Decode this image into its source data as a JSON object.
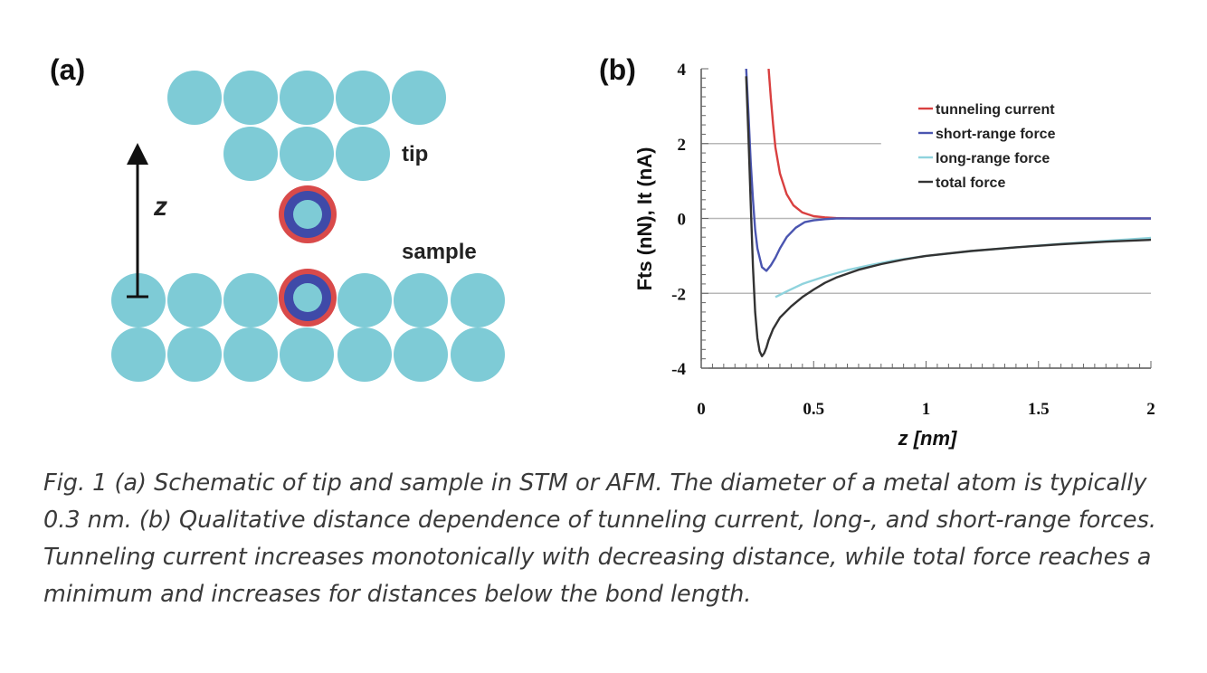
{
  "panel_a": {
    "label": "(a)",
    "tip_label": "tip",
    "sample_label": "sample",
    "z_label": "z",
    "colors": {
      "atom": "#7ecbd6",
      "ring_outer": "#d94a4a",
      "ring_inner": "#3f4aa8"
    }
  },
  "panel_b": {
    "label": "(b)"
  },
  "chart_data": {
    "type": "line",
    "xlabel": "z  [nm]",
    "ylabel": "Fts (nN), It (nA)",
    "xlim": [
      0,
      2
    ],
    "ylim": [
      -4,
      4
    ],
    "x_ticks": [
      "0",
      "0.5",
      "1",
      "1.5",
      "2"
    ],
    "y_ticks": [
      "4",
      "2",
      "0",
      "-2",
      "-4"
    ],
    "grid": "horizontal at y = 2, 0, -2",
    "legend_position": "top-right",
    "series": [
      {
        "name": "tunneling current",
        "color": "#d94040",
        "x": [
          0.3,
          0.31,
          0.32,
          0.33,
          0.35,
          0.38,
          0.41,
          0.45,
          0.5,
          0.55,
          0.6,
          0.65,
          0.7,
          2.0
        ],
        "y": [
          4.0,
          3.2,
          2.5,
          1.9,
          1.2,
          0.65,
          0.35,
          0.16,
          0.06,
          0.03,
          0.01,
          0.005,
          0.0,
          0.0
        ]
      },
      {
        "name": "short-range force",
        "color": "#4a55b0",
        "x": [
          0.2,
          0.21,
          0.22,
          0.23,
          0.24,
          0.25,
          0.27,
          0.29,
          0.31,
          0.33,
          0.35,
          0.38,
          0.42,
          0.46,
          0.5,
          0.55,
          0.6,
          2.0
        ],
        "y": [
          4.0,
          2.8,
          1.5,
          0.5,
          -0.3,
          -0.8,
          -1.3,
          -1.4,
          -1.25,
          -1.05,
          -0.8,
          -0.5,
          -0.25,
          -0.1,
          -0.05,
          -0.02,
          0.0,
          0.0
        ]
      },
      {
        "name": "long-range force",
        "color": "#8fd3dd",
        "x": [
          0.33,
          0.38,
          0.45,
          0.55,
          0.65,
          0.75,
          0.85,
          1.0,
          1.2,
          1.4,
          1.6,
          1.8,
          2.0
        ],
        "y": [
          -2.1,
          -1.95,
          -1.75,
          -1.55,
          -1.38,
          -1.25,
          -1.13,
          -1.0,
          -0.87,
          -0.77,
          -0.68,
          -0.6,
          -0.52
        ]
      },
      {
        "name": "total force",
        "color": "#333333",
        "x": [
          0.2,
          0.21,
          0.22,
          0.23,
          0.24,
          0.25,
          0.26,
          0.27,
          0.28,
          0.29,
          0.3,
          0.32,
          0.35,
          0.4,
          0.45,
          0.5,
          0.55,
          0.6,
          0.7,
          0.8,
          0.9,
          1.0,
          1.2,
          1.4,
          1.6,
          1.8,
          2.0
        ],
        "y": [
          3.8,
          2.2,
          0.4,
          -1.3,
          -2.5,
          -3.2,
          -3.55,
          -3.68,
          -3.6,
          -3.45,
          -3.25,
          -2.95,
          -2.65,
          -2.35,
          -2.1,
          -1.9,
          -1.72,
          -1.58,
          -1.37,
          -1.22,
          -1.1,
          -1.0,
          -0.87,
          -0.77,
          -0.69,
          -0.62,
          -0.57
        ]
      }
    ]
  },
  "caption": "Fig. 1 (a) Schematic of tip and sample in STM or AFM. The diameter of a metal atom is typically 0.3 nm. (b) Qualitative distance dependence of tunneling current, long-, and short-range forces. Tunneling current increases monotonically with decreasing distance, while total force reaches a minimum and increases for distances below the bond length."
}
